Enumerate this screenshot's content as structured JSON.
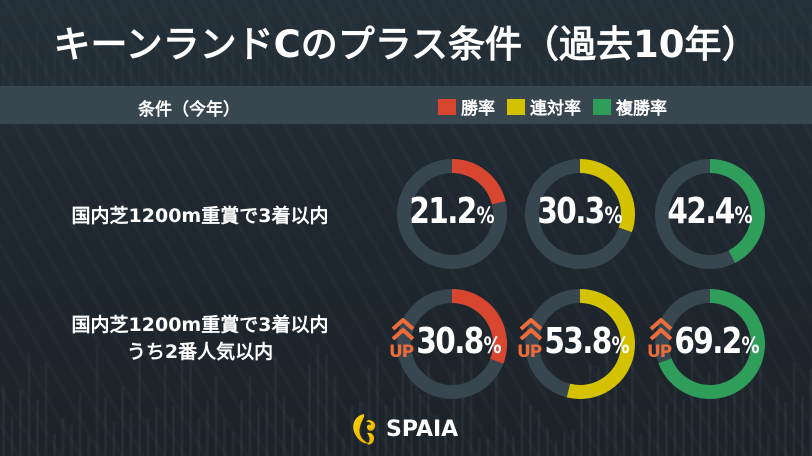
{
  "title": "キーンランドCのプラス条件（過去10年）",
  "header": {
    "condition_label": "条件（今年）",
    "legend": [
      {
        "label": "勝率",
        "color": "#d9462f"
      },
      {
        "label": "連対率",
        "color": "#d4c200"
      },
      {
        "label": "複勝率",
        "color": "#2f9e5b"
      }
    ]
  },
  "rows": [
    {
      "label_lines": [
        "国内芝1200m重賞で3着以内"
      ],
      "up": false,
      "values": [
        {
          "metric": "勝率",
          "number": "21.2",
          "unit": "%",
          "percent": 21.2,
          "color": "#d9462f"
        },
        {
          "metric": "連対率",
          "number": "30.3",
          "unit": "%",
          "percent": 30.3,
          "color": "#d4c200"
        },
        {
          "metric": "複勝率",
          "number": "42.4",
          "unit": "%",
          "percent": 42.4,
          "color": "#2f9e5b"
        }
      ]
    },
    {
      "label_lines": [
        "国内芝1200m重賞で3着以内",
        "うち2番人気以内"
      ],
      "up": true,
      "up_label": "UP",
      "values": [
        {
          "metric": "勝率",
          "number": "30.8",
          "unit": "%",
          "percent": 30.8,
          "color": "#d9462f"
        },
        {
          "metric": "連対率",
          "number": "53.8",
          "unit": "%",
          "percent": 53.8,
          "color": "#d4c200"
        },
        {
          "metric": "複勝率",
          "number": "69.2",
          "unit": "%",
          "percent": 69.2,
          "color": "#2f9e5b"
        }
      ]
    }
  ],
  "colors": {
    "track": "#37464f",
    "up_accent": "#ec6d3b",
    "header_band": "#37464f"
  },
  "footer": {
    "brand": "SPAIA",
    "logo_icon": "spaia-logo-icon"
  }
}
